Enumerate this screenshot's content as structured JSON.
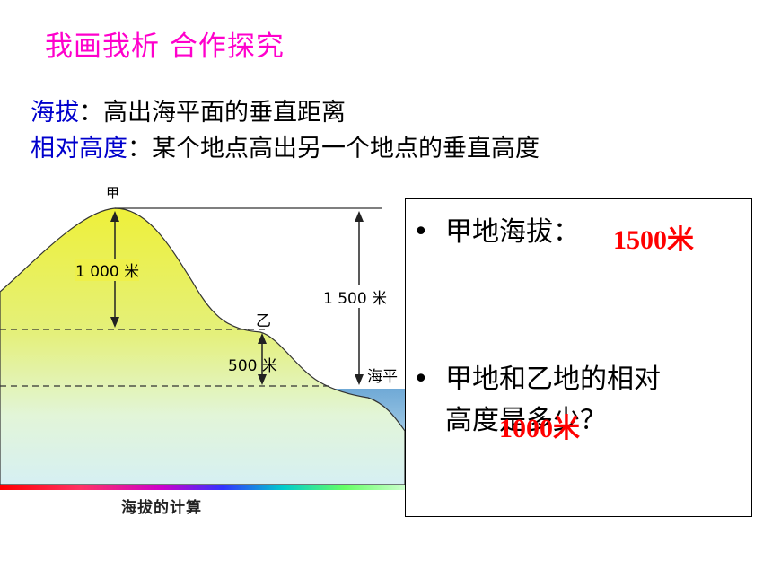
{
  "slide": {
    "title": "我画我析 合作探究",
    "def1": {
      "term": "海拔",
      "sep": "：",
      "text": "高出海平面的垂直距离"
    },
    "def2": {
      "term": "相对高度",
      "sep": "：",
      "text": "某个地点高出另一个地点的垂直高度"
    }
  },
  "figure": {
    "peak_a": "甲",
    "peak_b": "乙",
    "relative_height_label": "1 000 米",
    "altitude_label": "1 500 米",
    "b_height_label": "500 米",
    "sea_label": "海平",
    "caption": "海拔的计算"
  },
  "questions": {
    "q1": {
      "bullet": "•",
      "text": "甲地海拔：",
      "answer": "1500米"
    },
    "q2": {
      "bullet": "•",
      "line1": "甲地和乙地的相对",
      "line2": "高度是多少？",
      "answer": "1000米"
    }
  },
  "colors": {
    "title": "#ff00cc",
    "term": "#0000cc",
    "answer": "#ff0000",
    "mountain_top": "#e8ec3a",
    "mountain_bottom": "#d9f3f0",
    "sea": "#7fb7dd"
  }
}
